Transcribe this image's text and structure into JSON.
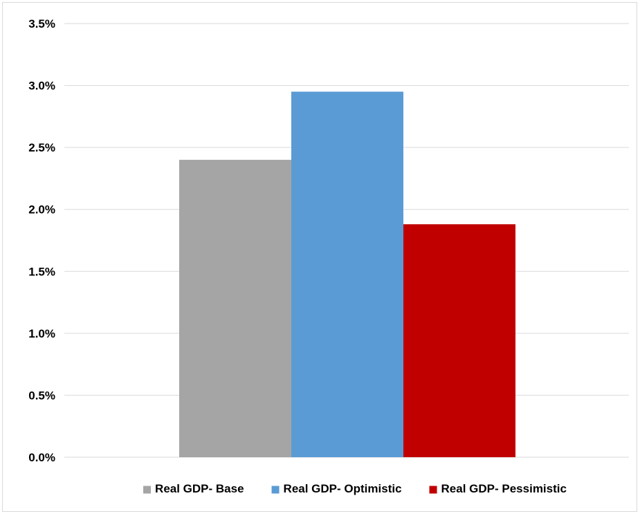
{
  "chart_data": {
    "type": "bar",
    "title": "",
    "xlabel": "",
    "ylabel": "",
    "categories": [
      ""
    ],
    "series": [
      {
        "name": "Real GDP- Base",
        "values": [
          2.4
        ],
        "color": "#a5a5a5"
      },
      {
        "name": "Real GDP- Optimistic",
        "values": [
          2.95
        ],
        "color": "#5b9bd5"
      },
      {
        "name": "Real GDP- Pessimistic",
        "values": [
          1.88
        ],
        "color": "#c00000"
      }
    ],
    "ylim": [
      0,
      3.5
    ],
    "yticks": [
      0,
      0.5,
      1.0,
      1.5,
      2.0,
      2.5,
      3.0,
      3.5
    ],
    "ytick_labels": [
      "0.0%",
      "0.5%",
      "1.0%",
      "1.5%",
      "2.0%",
      "2.5%",
      "3.0%",
      "3.5%"
    ],
    "grid": true,
    "gridline_color": "#d9d9d9",
    "legend_position": "bottom"
  }
}
